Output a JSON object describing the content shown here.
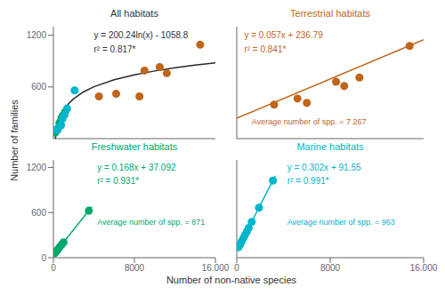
{
  "xlabel": "Number of non-native species",
  "ylabel": "Number of families",
  "chart_data": [
    {
      "type": "scatter",
      "title": "All habitats",
      "annotations": [
        "y = 200.24ln(x) - 1058.8",
        "r² = 0.817*"
      ],
      "xlim": [
        0,
        16000
      ],
      "ylim": [
        0,
        1300
      ],
      "xticks": [],
      "yticks": [
        0,
        600,
        1200
      ],
      "tick_labels": "y",
      "series": [
        {
          "color": "#c0651a",
          "x": [
            4500,
            6200,
            8500,
            9000,
            10500,
            11200,
            14500
          ],
          "values": [
            490,
            520,
            490,
            790,
            830,
            760,
            1090
          ]
        },
        {
          "color": "#00a86b",
          "x": [
            180,
            250,
            400,
            600,
            800,
            950,
            1150
          ],
          "values": [
            70,
            100,
            100,
            185,
            240,
            270,
            310
          ]
        },
        {
          "color": "#00b5cc",
          "x": [
            350,
            550,
            750,
            900,
            1100,
            1350,
            2100
          ],
          "values": [
            100,
            135,
            155,
            230,
            275,
            350,
            560
          ]
        },
        {
          "type": "line",
          "color": "#2a2a2a",
          "x": [
            197.88,
            250,
            300,
            400,
            600,
            1000,
            1500,
            2000,
            3000,
            4000,
            6000,
            8000,
            10000,
            12000,
            14000,
            16000
          ],
          "values": [
            0,
            46.82,
            83.33,
            140.93,
            222.12,
            324.41,
            405.6,
            463.2,
            544.4,
            602.0,
            683.19,
            740.8,
            785.48,
            821.99,
            852.85,
            879.59
          ]
        }
      ]
    },
    {
      "type": "scatter",
      "title": "Terrestrial habitats",
      "color": "#c0651a",
      "annotations": [
        "y = 0.057x + 236.79",
        "r² = 0.841*",
        "Average number of spp. = 7 267"
      ],
      "xlim": [
        0,
        16000
      ],
      "ylim": [
        0,
        1300
      ],
      "xticks": [],
      "yticks": [
        0,
        600,
        1200
      ],
      "tick_labels": false,
      "series": [
        {
          "color": "#c0651a",
          "x": [
            3200,
            5200,
            6000,
            8500,
            9200,
            10500,
            14800
          ],
          "values": [
            395,
            465,
            415,
            660,
            610,
            710,
            1075
          ]
        },
        {
          "type": "line",
          "color": "#c0651a",
          "x": [
            0,
            16000
          ],
          "values": [
            236.79,
            1148.79
          ]
        }
      ]
    },
    {
      "type": "scatter",
      "title": "Freshwater habitats",
      "color": "#00a86b",
      "annotations": [
        "y = 0.168x + 37.092",
        "r² = 0.931*",
        "Average number of spp. = 871"
      ],
      "xlim": [
        0,
        16000
      ],
      "ylim": [
        0,
        1300
      ],
      "xticks": [
        0,
        8000,
        {
          "value": 16000,
          "label": "16.000"
        }
      ],
      "yticks": [
        0,
        600,
        1200
      ],
      "series": [
        {
          "color": "#00a86b",
          "x": [
            150,
            270,
            430,
            600,
            820,
            1000,
            3500
          ],
          "values": [
            60,
            85,
            105,
            140,
            175,
            205,
            625
          ]
        },
        {
          "type": "line",
          "color": "#00a86b",
          "x": [
            0,
            3800
          ],
          "values": [
            37.092,
            675.492
          ]
        }
      ]
    },
    {
      "type": "scatter",
      "title": "Marine habitats",
      "color": "#00b5cc",
      "annotations": [
        "y = 0.302x + 91.55",
        "r² = 0.991*",
        "Average number of spp. = 963"
      ],
      "xlim": [
        0,
        16000
      ],
      "ylim": [
        0,
        1300
      ],
      "xticks": [
        0,
        8000,
        {
          "value": 16000,
          "label": "16.000"
        }
      ],
      "yticks": [
        0,
        600,
        1200
      ],
      "tick_labels": "x",
      "series": [
        {
          "color": "#00b5cc",
          "x": [
            160,
            290,
            420,
            570,
            700,
            860,
            1020,
            1280,
            1900,
            3100
          ],
          "values": [
            140,
            175,
            215,
            262,
            300,
            345,
            395,
            475,
            665,
            1025
          ]
        },
        {
          "type": "line",
          "color": "#00b5cc",
          "x": [
            0,
            3300
          ],
          "values": [
            91.55,
            1088.15
          ]
        }
      ]
    }
  ]
}
